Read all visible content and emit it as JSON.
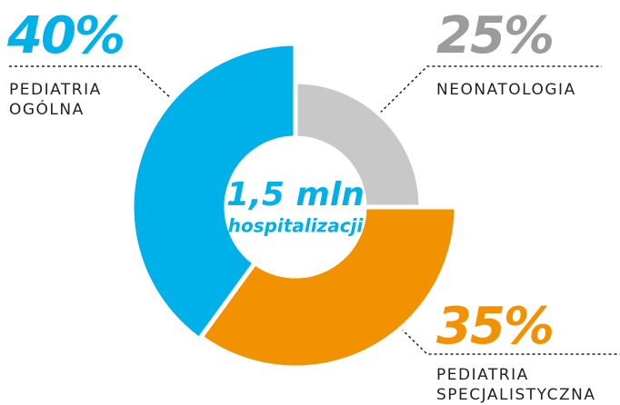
{
  "chart_data": {
    "type": "pie",
    "donut": true,
    "center_text": [
      "1,5 mln",
      "hospitalizacji"
    ],
    "categories": [
      "NEONATOLOGIA",
      "PEDIATRIA SPECJALISTYCZNA",
      "PEDIATRIA OGÓLNA"
    ],
    "values": [
      25,
      35,
      40
    ],
    "value_labels": [
      "25%",
      "35%",
      "40%"
    ],
    "colors": [
      "#c8c8c8",
      "#f39200",
      "#00b0e8"
    ],
    "label_colors": [
      "#9b9b9b",
      "#f39200",
      "#00b0e8"
    ],
    "center_color": "#00b0e8"
  }
}
